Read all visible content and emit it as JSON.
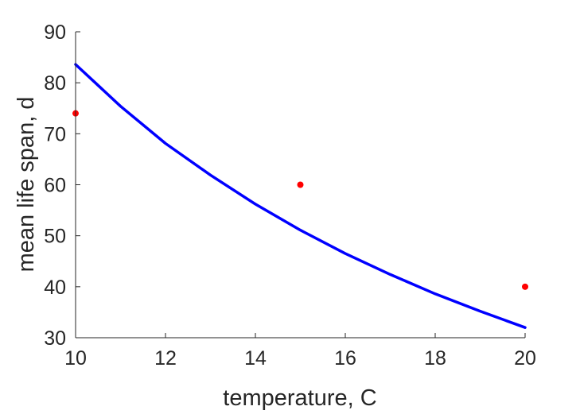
{
  "chart_data": {
    "type": "line",
    "xlabel": "temperature, C",
    "ylabel": "mean life span, d",
    "xlim": [
      10,
      20
    ],
    "ylim": [
      30,
      90
    ],
    "xticks": [
      10,
      12,
      14,
      16,
      18,
      20
    ],
    "yticks": [
      30,
      40,
      50,
      60,
      70,
      80,
      90
    ],
    "grid": false,
    "series": [
      {
        "kind": "line",
        "color": "#0000ff",
        "x": [
          10,
          11,
          12,
          13,
          14,
          15,
          16,
          17,
          18,
          19,
          20
        ],
        "y": [
          83.6,
          75.4,
          68.1,
          61.9,
          56.2,
          51.1,
          46.5,
          42.4,
          38.6,
          35.2,
          32.0
        ]
      },
      {
        "kind": "scatter",
        "color": "#ff0000",
        "x": [
          10,
          15,
          20
        ],
        "y": [
          74,
          60,
          40
        ]
      }
    ]
  }
}
